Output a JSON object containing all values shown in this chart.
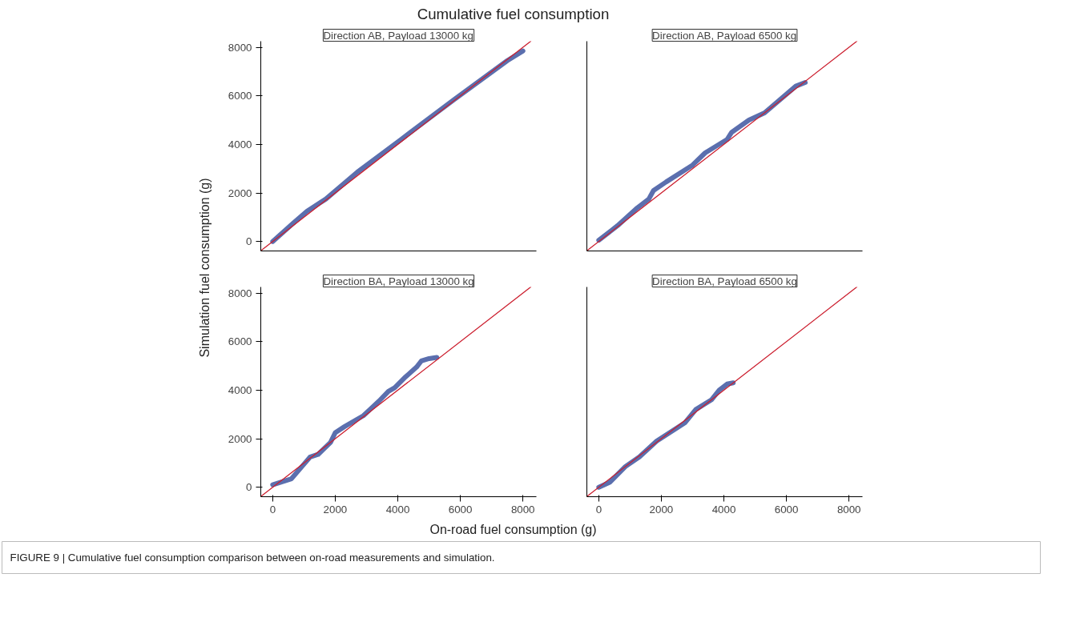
{
  "chart_data": [
    {
      "type": "line",
      "title": "Direction AB, Payload 13000 kg",
      "ylabel": "Simulation fuel consumption (g)",
      "annotations": [
        "Cumulative fuel consumption",
        "FIGURE 9 | Cumulative fuel consumption comparison between on-road measurements and simulation."
      ],
      "xlim": [
        -380,
        8430
      ],
      "ylim": [
        -390,
        8250
      ],
      "xticks": [
        0,
        2000,
        4000,
        6000,
        8000
      ],
      "yticks": [
        0,
        2000,
        4000,
        6000,
        8000
      ],
      "tick_labels": "y",
      "grid": false,
      "series": [
        {
          "color": "#5b6fae",
          "x": [
            0,
            650,
            1100,
            1700,
            2700,
            4100,
            5800,
            7500,
            8000
          ],
          "values": [
            0,
            750,
            1250,
            1750,
            2850,
            4200,
            5850,
            7450,
            7850
          ]
        },
        {
          "color": "#cc1f2f",
          "x": [
            -380,
            8250
          ],
          "values": [
            -380,
            8250
          ]
        }
      ]
    },
    {
      "type": "line",
      "title": "Direction AB, Payload 6500 kg",
      "xlim": [
        -380,
        8430
      ],
      "ylim": [
        -390,
        8250
      ],
      "xticks": [
        0,
        2000,
        4000,
        6000,
        8000
      ],
      "yticks": [
        0,
        2000,
        4000,
        6000,
        8000
      ],
      "tick_labels": false,
      "grid": false,
      "series": [
        {
          "color": "#5b6fae",
          "x": [
            0,
            600,
            1200,
            1600,
            1750,
            2150,
            3000,
            3400,
            4100,
            4250,
            4800,
            5300,
            6300,
            6600
          ],
          "values": [
            50,
            650,
            1350,
            1750,
            2100,
            2450,
            3150,
            3650,
            4200,
            4500,
            5000,
            5300,
            6400,
            6550
          ]
        },
        {
          "color": "#cc1f2f",
          "x": [
            -380,
            8250
          ],
          "values": [
            -380,
            8250
          ]
        }
      ]
    },
    {
      "type": "line",
      "title": "Direction BA, Payload 13000 kg",
      "xlabel": "On-road fuel consumption (g)",
      "xlim": [
        -380,
        8430
      ],
      "ylim": [
        -390,
        8250
      ],
      "xticks": [
        0,
        2000,
        4000,
        6000,
        8000
      ],
      "yticks": [
        0,
        2000,
        4000,
        6000,
        8000
      ],
      "grid": false,
      "series": [
        {
          "color": "#5b6fae",
          "x": [
            0,
            600,
            1000,
            1200,
            1450,
            1850,
            2000,
            2300,
            2900,
            3400,
            3700,
            3900,
            4250,
            4600,
            4750,
            5000,
            5250
          ],
          "values": [
            100,
            350,
            950,
            1250,
            1350,
            1850,
            2250,
            2500,
            2950,
            3550,
            3950,
            4100,
            4550,
            4950,
            5200,
            5300,
            5350
          ]
        },
        {
          "color": "#cc1f2f",
          "x": [
            -380,
            8250
          ],
          "values": [
            -380,
            8250
          ]
        }
      ]
    },
    {
      "type": "line",
      "title": "Direction BA, Payload 6500 kg",
      "xlim": [
        -380,
        8430
      ],
      "ylim": [
        -390,
        8250
      ],
      "xticks": [
        0,
        2000,
        4000,
        6000,
        8000
      ],
      "yticks": [
        0,
        2000,
        4000,
        6000,
        8000
      ],
      "tick_labels": "x",
      "grid": false,
      "series": [
        {
          "color": "#5b6fae",
          "x": [
            0,
            350,
            850,
            1300,
            1850,
            2750,
            3100,
            3600,
            3850,
            4100,
            4300
          ],
          "values": [
            0,
            200,
            850,
            1250,
            1900,
            2650,
            3200,
            3600,
            4000,
            4250,
            4300
          ]
        },
        {
          "color": "#cc1f2f",
          "x": [
            -380,
            8250
          ],
          "values": [
            -380,
            8250
          ]
        }
      ]
    }
  ]
}
